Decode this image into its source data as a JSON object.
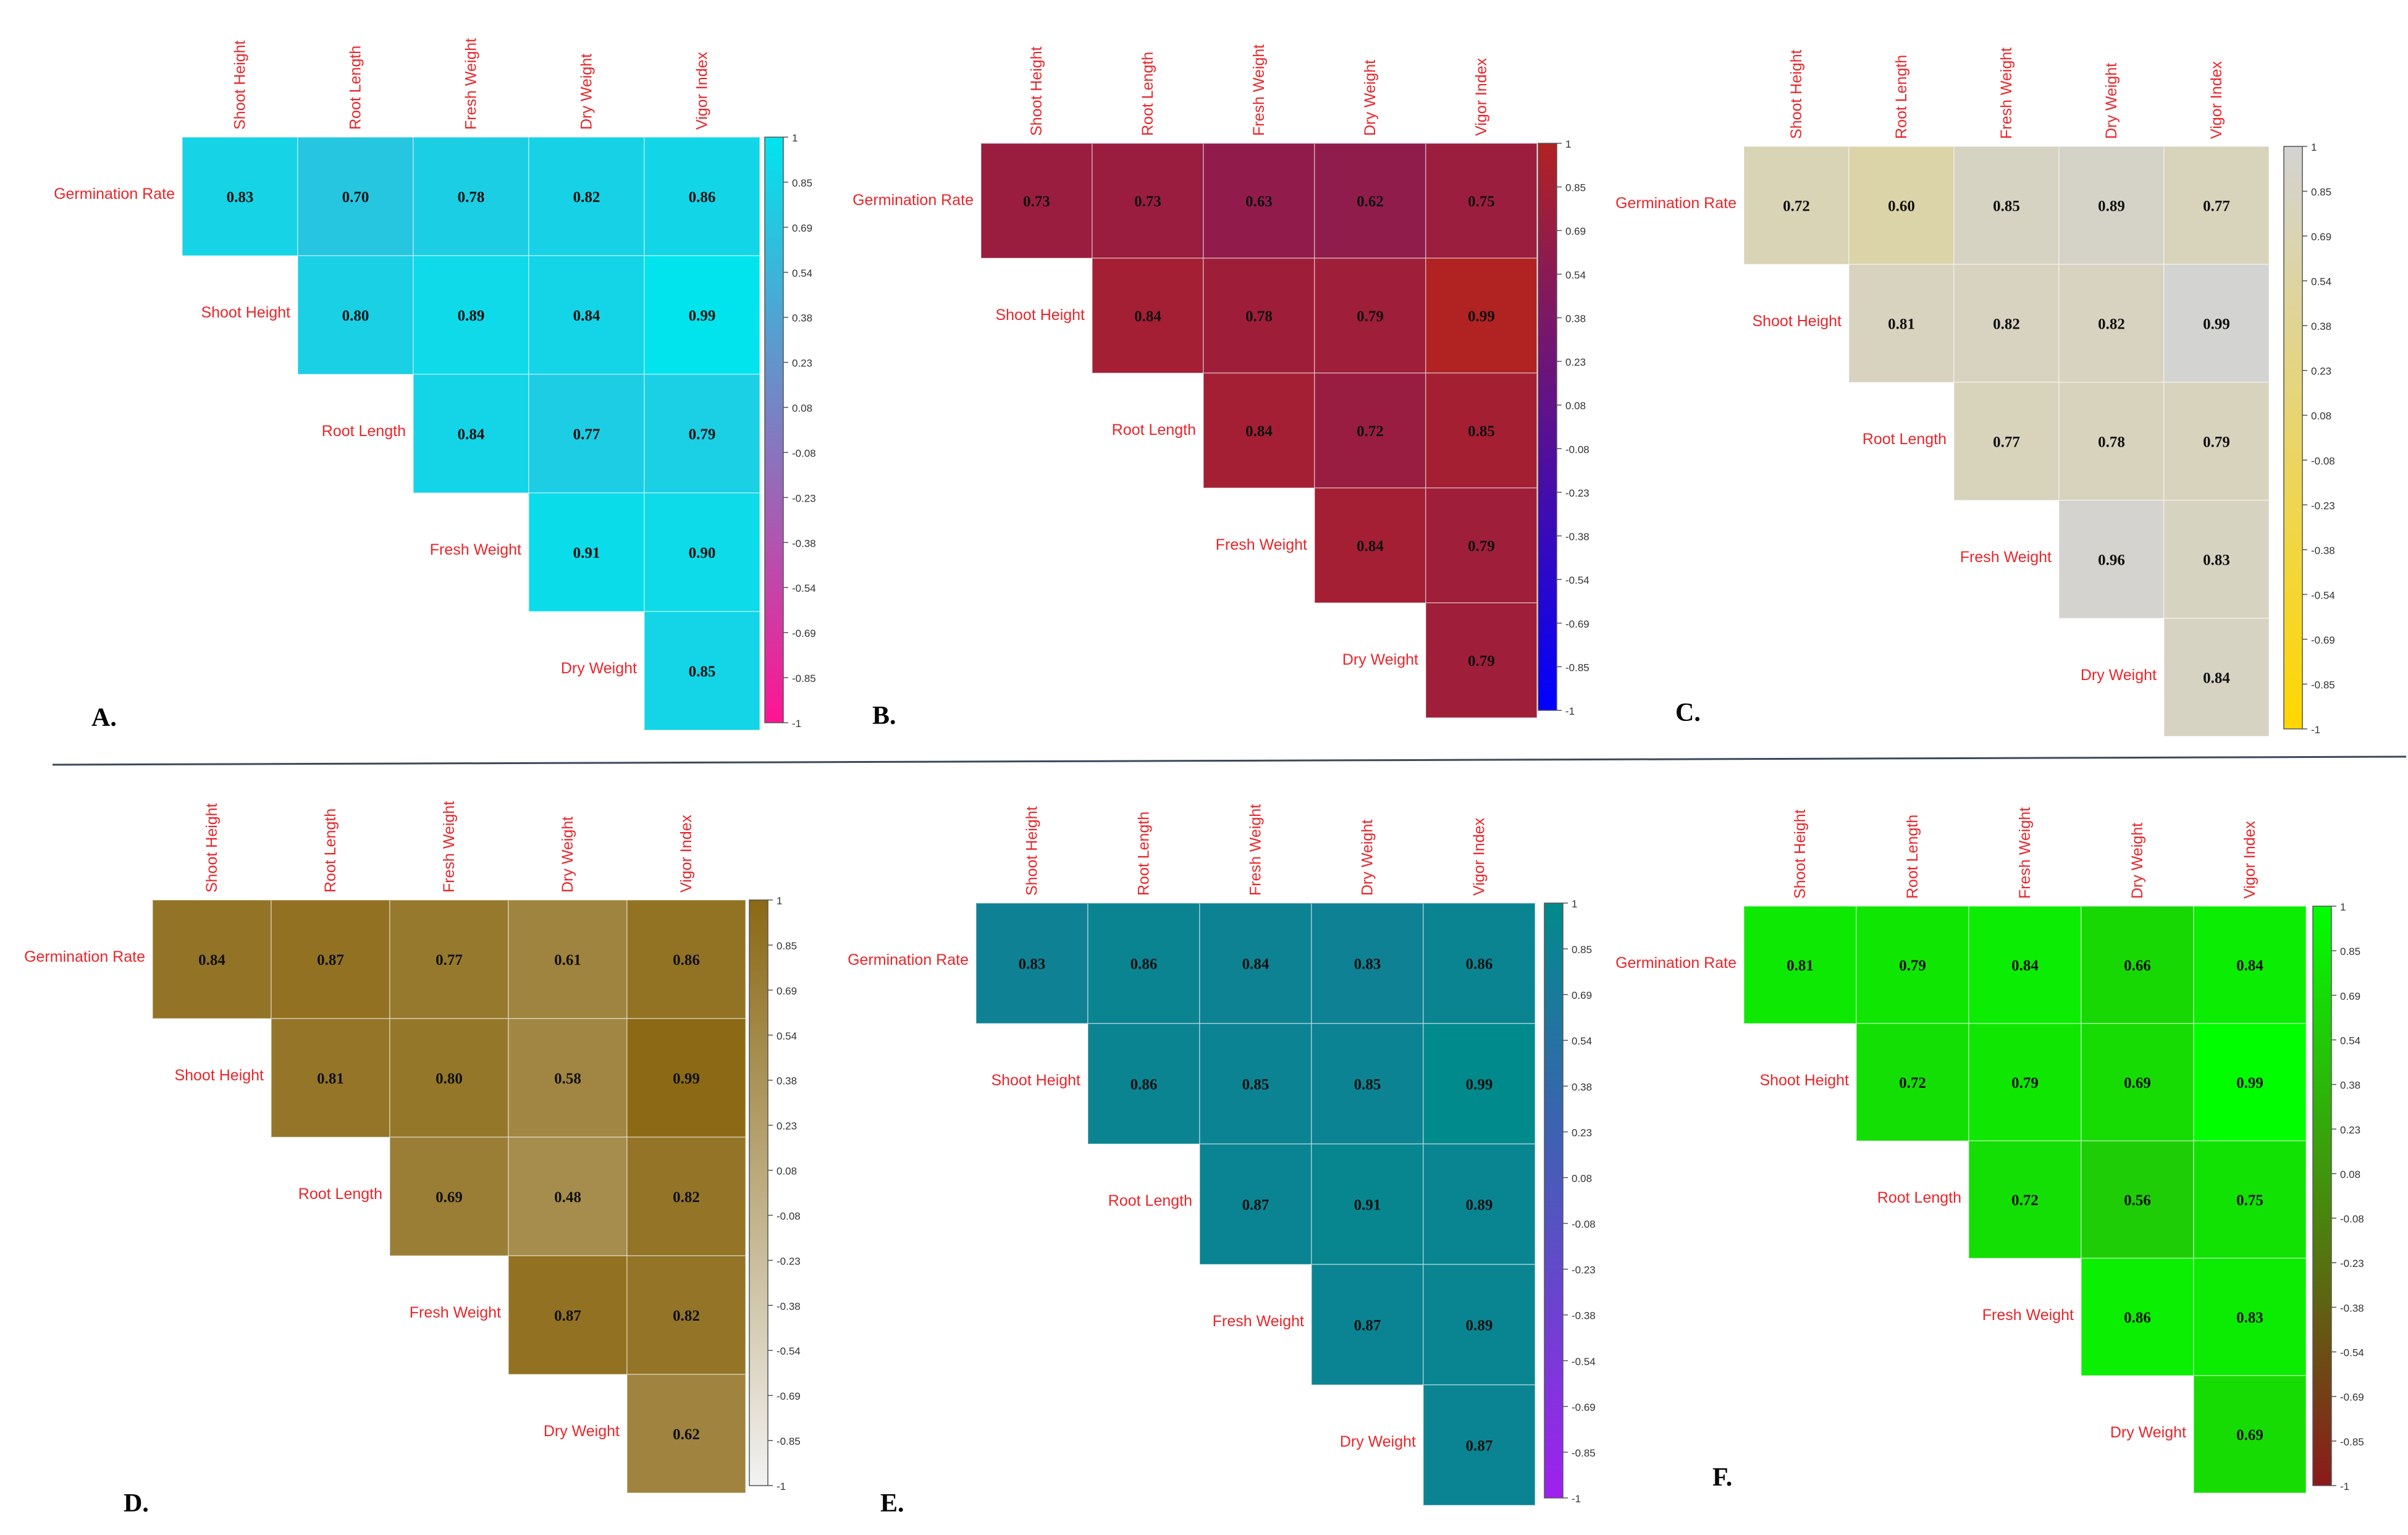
{
  "chart_data": [
    {
      "type": "heatmap",
      "panel_label": "A.",
      "columns": [
        "Shoot Height",
        "Root Length",
        "Fresh Weight",
        "Dry Weight",
        "Vigor Index"
      ],
      "rows": [
        "Germination Rate",
        "Shoot Height",
        "Root Length",
        "Fresh Weight",
        "Dry Weight"
      ],
      "values": [
        [
          0.83,
          0.7,
          0.78,
          0.82,
          0.86
        ],
        [
          null,
          0.8,
          0.89,
          0.84,
          0.99
        ],
        [
          null,
          null,
          0.84,
          0.77,
          0.79
        ],
        [
          null,
          null,
          null,
          0.91,
          0.9
        ],
        [
          null,
          null,
          null,
          null,
          0.85
        ]
      ],
      "value_labels": [
        [
          "0.83",
          "0.70",
          "0.78",
          "0.82",
          "0.86"
        ],
        [
          null,
          "0.80",
          "0.89",
          "0.84",
          "0.99"
        ],
        [
          null,
          null,
          "0.84",
          "0.77",
          "0.79"
        ],
        [
          null,
          null,
          null,
          "0.91",
          "0.90"
        ],
        [
          null,
          null,
          null,
          null,
          "0.85"
        ]
      ],
      "colorbar_ticks": [
        "1",
        "0.85",
        "0.69",
        "0.54",
        "0.38",
        "0.23",
        "0.08",
        "-0.08",
        "-0.23",
        "-0.38",
        "-0.54",
        "-0.69",
        "-0.85",
        "-1"
      ],
      "color_high": "#00e5ee",
      "color_low": "#ff1493"
    },
    {
      "type": "heatmap",
      "panel_label": "B.",
      "columns": [
        "Shoot Height",
        "Root Length",
        "Fresh Weight",
        "Dry Weight",
        "Vigor Index"
      ],
      "rows": [
        "Germination Rate",
        "Shoot Height",
        "Root Length",
        "Fresh Weight",
        "Dry Weight"
      ],
      "values": [
        [
          0.73,
          0.73,
          0.63,
          0.62,
          0.75
        ],
        [
          null,
          0.84,
          0.78,
          0.79,
          0.99
        ],
        [
          null,
          null,
          0.84,
          0.72,
          0.85
        ],
        [
          null,
          null,
          null,
          0.84,
          0.79
        ],
        [
          null,
          null,
          null,
          null,
          0.79
        ]
      ],
      "value_labels": [
        [
          "0.73",
          "0.73",
          "0.63",
          "0.62",
          "0.75"
        ],
        [
          null,
          "0.84",
          "0.78",
          "0.79",
          "0.99"
        ],
        [
          null,
          null,
          "0.84",
          "0.72",
          "0.85"
        ],
        [
          null,
          null,
          null,
          "0.84",
          "0.79"
        ],
        [
          null,
          null,
          null,
          null,
          "0.79"
        ]
      ],
      "colorbar_ticks": [
        "1",
        "0.85",
        "0.69",
        "0.54",
        "0.38",
        "0.23",
        "0.08",
        "-0.08",
        "-0.23",
        "-0.38",
        "-0.54",
        "-0.69",
        "-0.85",
        "-1"
      ],
      "color_high": "#b22222",
      "color_low": "#0000ff"
    },
    {
      "type": "heatmap",
      "panel_label": "C.",
      "columns": [
        "Shoot Height",
        "Root Length",
        "Fresh Weight",
        "Dry Weight",
        "Vigor Index"
      ],
      "rows": [
        "Germination Rate",
        "Shoot Height",
        "Root Length",
        "Fresh Weight",
        "Dry Weight"
      ],
      "values": [
        [
          0.72,
          0.6,
          0.85,
          0.89,
          0.77
        ],
        [
          null,
          0.81,
          0.82,
          0.82,
          0.99
        ],
        [
          null,
          null,
          0.77,
          0.78,
          0.79
        ],
        [
          null,
          null,
          null,
          0.96,
          0.83
        ],
        [
          null,
          null,
          null,
          null,
          0.84
        ]
      ],
      "value_labels": [
        [
          "0.72",
          "0.60",
          "0.85",
          "0.89",
          "0.77"
        ],
        [
          null,
          "0.81",
          "0.82",
          "0.82",
          "0.99"
        ],
        [
          null,
          null,
          "0.77",
          "0.78",
          "0.79"
        ],
        [
          null,
          null,
          null,
          "0.96",
          "0.83"
        ],
        [
          null,
          null,
          null,
          null,
          "0.84"
        ]
      ],
      "colorbar_ticks": [
        "1",
        "0.85",
        "0.69",
        "0.54",
        "0.38",
        "0.23",
        "0.08",
        "-0.08",
        "-0.23",
        "-0.38",
        "-0.54",
        "-0.69",
        "-0.85",
        "-1"
      ],
      "color_high": "#d3d3d3",
      "color_low": "#ffd700"
    },
    {
      "type": "heatmap",
      "panel_label": "D.",
      "columns": [
        "Shoot Height",
        "Root Length",
        "Fresh Weight",
        "Dry Weight",
        "Vigor Index"
      ],
      "rows": [
        "Germination Rate",
        "Shoot Height",
        "Root Length",
        "Fresh Weight",
        "Dry Weight"
      ],
      "values": [
        [
          0.84,
          0.87,
          0.77,
          0.61,
          0.86
        ],
        [
          null,
          0.81,
          0.8,
          0.58,
          0.99
        ],
        [
          null,
          null,
          0.69,
          0.48,
          0.82
        ],
        [
          null,
          null,
          null,
          0.87,
          0.82
        ],
        [
          null,
          null,
          null,
          null,
          0.62
        ]
      ],
      "value_labels": [
        [
          "0.84",
          "0.87",
          "0.77",
          "0.61",
          "0.86"
        ],
        [
          null,
          "0.81",
          "0.80",
          "0.58",
          "0.99"
        ],
        [
          null,
          null,
          "0.69",
          "0.48",
          "0.82"
        ],
        [
          null,
          null,
          null,
          "0.87",
          "0.82"
        ],
        [
          null,
          null,
          null,
          null,
          "0.62"
        ]
      ],
      "colorbar_ticks": [
        "1",
        "0.85",
        "0.69",
        "0.54",
        "0.38",
        "0.23",
        "0.08",
        "-0.08",
        "-0.23",
        "-0.38",
        "-0.54",
        "-0.69",
        "-0.85",
        "-1"
      ],
      "color_high": "#8b6914",
      "color_low": "#f2f2f2"
    },
    {
      "type": "heatmap",
      "panel_label": "E.",
      "columns": [
        "Shoot Height",
        "Root Length",
        "Fresh Weight",
        "Dry Weight",
        "Vigor Index"
      ],
      "rows": [
        "Germination Rate",
        "Shoot Height",
        "Root Length",
        "Fresh Weight",
        "Dry Weight"
      ],
      "values": [
        [
          0.83,
          0.86,
          0.84,
          0.83,
          0.86
        ],
        [
          null,
          0.86,
          0.85,
          0.85,
          0.99
        ],
        [
          null,
          null,
          0.87,
          0.91,
          0.89
        ],
        [
          null,
          null,
          null,
          0.87,
          0.89
        ],
        [
          null,
          null,
          null,
          null,
          0.87
        ]
      ],
      "value_labels": [
        [
          "0.83",
          "0.86",
          "0.84",
          "0.83",
          "0.86"
        ],
        [
          null,
          "0.86",
          "0.85",
          "0.85",
          "0.99"
        ],
        [
          null,
          null,
          "0.87",
          "0.91",
          "0.89"
        ],
        [
          null,
          null,
          null,
          "0.87",
          "0.89"
        ],
        [
          null,
          null,
          null,
          null,
          "0.87"
        ]
      ],
      "colorbar_ticks": [
        "1",
        "0.85",
        "0.69",
        "0.54",
        "0.38",
        "0.23",
        "0.08",
        "-0.08",
        "-0.23",
        "-0.38",
        "-0.54",
        "-0.69",
        "-0.85",
        "-1"
      ],
      "color_high": "#008b8b",
      "color_low": "#a020f0"
    },
    {
      "type": "heatmap",
      "panel_label": "F.",
      "columns": [
        "Shoot Height",
        "Root Length",
        "Fresh Weight",
        "Dry Weight",
        "Vigor Index"
      ],
      "rows": [
        "Germination Rate",
        "Shoot Height",
        "Root Length",
        "Fresh Weight",
        "Dry Weight"
      ],
      "values": [
        [
          0.81,
          0.79,
          0.84,
          0.66,
          0.84
        ],
        [
          null,
          0.72,
          0.79,
          0.69,
          0.99
        ],
        [
          null,
          null,
          0.72,
          0.56,
          0.75
        ],
        [
          null,
          null,
          null,
          0.86,
          0.83
        ],
        [
          null,
          null,
          null,
          null,
          0.69
        ]
      ],
      "value_labels": [
        [
          "0.81",
          "0.79",
          "0.84",
          "0.66",
          "0.84"
        ],
        [
          null,
          "0.72",
          "0.79",
          "0.69",
          "0.99"
        ],
        [
          null,
          null,
          "0.72",
          "0.56",
          "0.75"
        ],
        [
          null,
          null,
          null,
          "0.86",
          "0.83"
        ],
        [
          null,
          null,
          null,
          null,
          "0.69"
        ]
      ],
      "colorbar_ticks": [
        "1",
        "0.85",
        "0.69",
        "0.54",
        "0.38",
        "0.23",
        "0.08",
        "-0.08",
        "-0.23",
        "-0.38",
        "-0.54",
        "-0.69",
        "-0.85",
        "-1"
      ],
      "color_high": "#00ff00",
      "color_low": "#8b1a1a"
    }
  ]
}
